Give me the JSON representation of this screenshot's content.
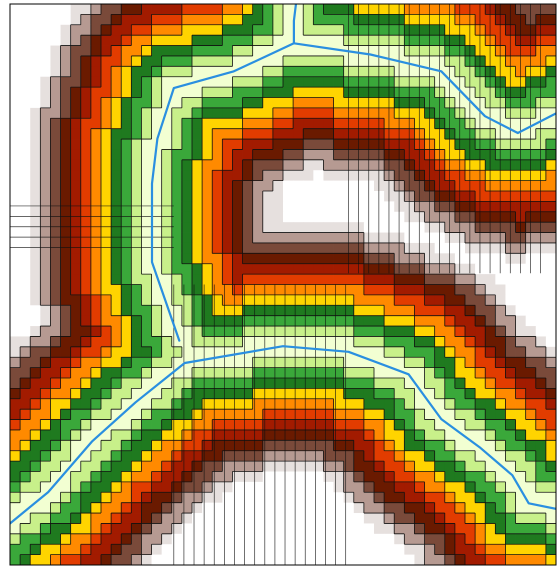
{
  "map": {
    "grid_cells": 54,
    "palette": {
      "background": "#ffffff",
      "frame": "#000000",
      "grid_line": "#111111",
      "river": "#2a8fe0",
      "distance_ramp": [
        "#f2ffd2",
        "#c8f08a",
        "#3aa83a",
        "#1f7a1f",
        "#ffd400",
        "#ff8a00",
        "#e23c00",
        "#a21b00",
        "#6a1a00",
        "#7a4a3a",
        "#b69a92",
        "#e6e0de",
        "#ffffff"
      ]
    },
    "channels": [
      {
        "id": "upper-channel",
        "description": "tributary",
        "centerline": [
          [
            0.53,
            -0.05
          ],
          [
            0.52,
            0.03
          ],
          [
            0.52,
            0.07
          ],
          [
            0.41,
            0.12
          ],
          [
            0.3,
            0.15
          ],
          [
            0.27,
            0.24
          ],
          [
            0.26,
            0.32
          ],
          [
            0.26,
            0.46
          ],
          [
            0.31,
            0.6
          ]
        ]
      },
      {
        "id": "upper-right-channel",
        "description": "main-stem",
        "centerline": [
          [
            0.52,
            0.07
          ],
          [
            0.66,
            0.09
          ],
          [
            0.79,
            0.12
          ],
          [
            0.87,
            0.2
          ],
          [
            0.93,
            0.23
          ],
          [
            1.05,
            0.17
          ]
        ]
      },
      {
        "id": "lower-channel",
        "description": "main-stem",
        "centerline": [
          [
            -0.03,
            0.95
          ],
          [
            0.07,
            0.87
          ],
          [
            0.15,
            0.78
          ],
          [
            0.23,
            0.71
          ],
          [
            0.32,
            0.64
          ],
          [
            0.5,
            0.61
          ],
          [
            0.62,
            0.62
          ],
          [
            0.73,
            0.66
          ],
          [
            0.79,
            0.74
          ],
          [
            0.86,
            0.79
          ],
          [
            0.92,
            0.84
          ],
          [
            0.95,
            0.89
          ],
          [
            1.05,
            0.91
          ]
        ]
      }
    ]
  }
}
